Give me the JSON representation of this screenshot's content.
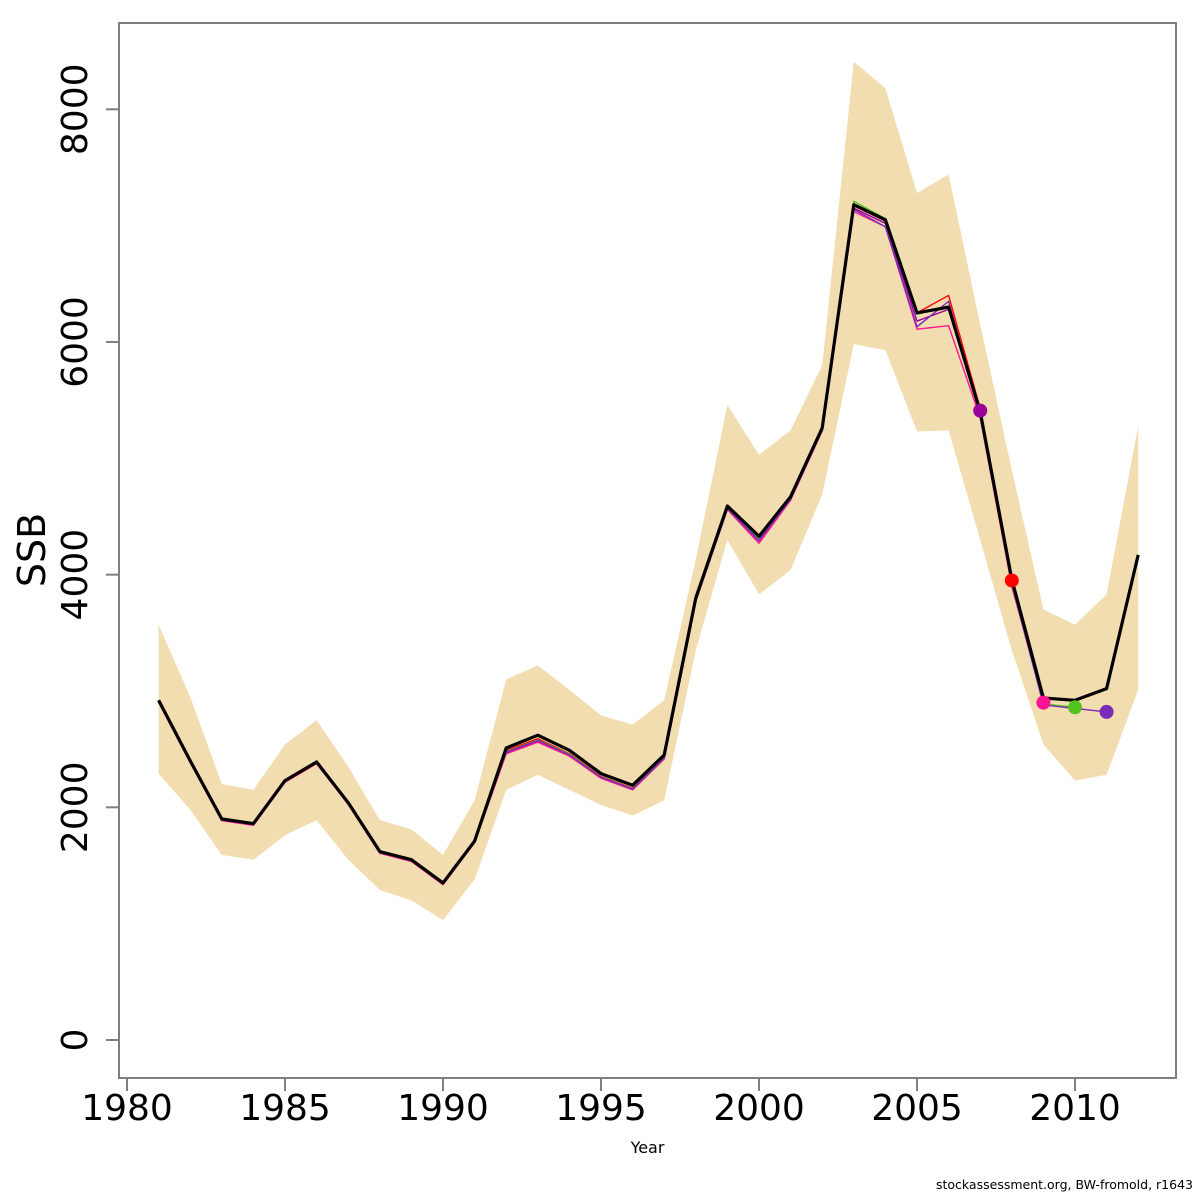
{
  "figure": {
    "background": "#ffffff",
    "axis_color": "#7f7f7f",
    "text_color": "#000000"
  },
  "footer": {
    "text": "stockassessment.org, BW-fromold, r1643"
  },
  "chart_data": {
    "type": "line",
    "title": "",
    "xlabel": "Year",
    "ylabel": "SSB",
    "grid": false,
    "legend": "none",
    "x_ticks": [
      1980,
      1985,
      1990,
      1995,
      2000,
      2005,
      2010
    ],
    "y_ticks": [
      0,
      2000,
      4000,
      6000,
      8000
    ],
    "xlim": [
      1979.75,
      2013.2
    ],
    "ylim": [
      -330,
      8740
    ],
    "band": {
      "name": "confidence-band",
      "color": "#f2ddb0",
      "start_year": 1981,
      "upper": [
        3570,
        2950,
        2200,
        2150,
        2540,
        2750,
        2350,
        1890,
        1810,
        1590,
        2060,
        3100,
        3220,
        3010,
        2790,
        2710,
        2920,
        4130,
        5460,
        5030,
        5240,
        5800,
        8410,
        8180,
        7280,
        7440,
        6150,
        4900,
        3700,
        3570,
        3830,
        5280
      ],
      "lower": [
        2290,
        1980,
        1590,
        1550,
        1760,
        1890,
        1550,
        1290,
        1200,
        1030,
        1380,
        2150,
        2280,
        2150,
        2020,
        1930,
        2060,
        3350,
        4300,
        3830,
        4040,
        4690,
        5980,
        5930,
        5230,
        5240,
        4300,
        3350,
        2540,
        2230,
        2280,
        3010
      ]
    },
    "series": [
      {
        "name": "current-run",
        "color": "#000000",
        "width": 3.2,
        "end_dot": false,
        "start_year": 1981,
        "values": [
          2920,
          2400,
          1900,
          1860,
          2230,
          2390,
          2040,
          1620,
          1550,
          1350,
          1710,
          2510,
          2620,
          2490,
          2290,
          2190,
          2450,
          3800,
          4590,
          4330,
          4670,
          5260,
          7180,
          7050,
          6250,
          6300,
          5400,
          3960,
          2940,
          2920,
          3020,
          4170
        ]
      },
      {
        "name": "retro-2011",
        "color": "#7a2bb8",
        "width": 1.4,
        "end_dot": true,
        "start_year": 1981,
        "values": [
          2912,
          2392,
          1892,
          1852,
          2222,
          2382,
          2032,
          1612,
          1542,
          1342,
          1702,
          2475,
          2575,
          2450,
          2258,
          2158,
          2422,
          3780,
          4568,
          4295,
          4650,
          5245,
          7140,
          6990,
          6130,
          6350,
          5380,
          3920,
          2880,
          2850,
          2820
        ]
      },
      {
        "name": "retro-2010",
        "color": "#53c41e",
        "width": 1.4,
        "end_dot": true,
        "start_year": 1981,
        "values": [
          2915,
          2395,
          1895,
          1855,
          2225,
          2385,
          2035,
          1615,
          1545,
          1345,
          1705,
          2480,
          2580,
          2455,
          2260,
          2160,
          2425,
          3785,
          4575,
          4310,
          4655,
          5250,
          7210,
          7060,
          6240,
          6310,
          5400,
          3940,
          2890,
          2860
        ]
      },
      {
        "name": "retro-2009",
        "color": "#ff1493",
        "width": 1.4,
        "end_dot": true,
        "start_year": 1981,
        "values": [
          2905,
          2385,
          1885,
          1845,
          2215,
          2375,
          2025,
          1605,
          1535,
          1335,
          1695,
          2460,
          2560,
          2440,
          2250,
          2150,
          2415,
          3770,
          4560,
          4270,
          4640,
          5235,
          7120,
          6990,
          6110,
          6140,
          5350,
          3900,
          2900
        ]
      },
      {
        "name": "retro-2008",
        "color": "#ff0000",
        "width": 1.4,
        "end_dot": true,
        "start_year": 1981,
        "values": [
          2910,
          2390,
          1890,
          1850,
          2220,
          2380,
          2030,
          1610,
          1540,
          1340,
          1700,
          2490,
          2590,
          2460,
          2265,
          2165,
          2430,
          3780,
          4570,
          4300,
          4650,
          5245,
          7170,
          7040,
          6250,
          6400,
          5430,
          3950
        ]
      },
      {
        "name": "retro-2007",
        "color": "#9c009c",
        "width": 1.4,
        "end_dot": true,
        "start_year": 1981,
        "values": [
          2908,
          2388,
          1888,
          1848,
          2218,
          2378,
          2028,
          1608,
          1538,
          1338,
          1698,
          2470,
          2570,
          2445,
          2255,
          2155,
          2420,
          3775,
          4565,
          4290,
          4645,
          5240,
          7150,
          7020,
          6180,
          6280,
          5410
        ]
      }
    ]
  }
}
